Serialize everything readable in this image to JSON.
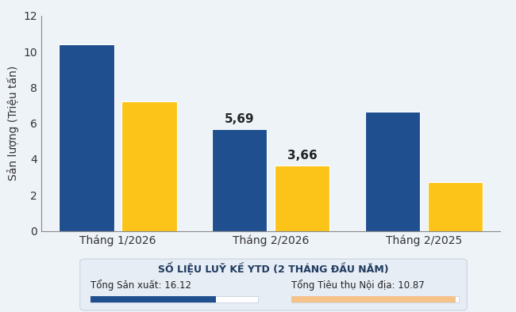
{
  "chart_data": {
    "type": "bar",
    "y_label": "Sản lượng (Triệu tấn)",
    "categories": [
      "Tháng 1/2026",
      "Tháng 2/2026",
      "Tháng 2/2025"
    ],
    "series": [
      {
        "color": "#1f4f8f",
        "values": [
          10.4,
          5.69,
          6.65
        ],
        "value_labels": [
          null,
          "5,69",
          null
        ]
      },
      {
        "color": "#fcc419",
        "values": [
          7.2,
          3.66,
          2.7
        ],
        "value_labels": [
          null,
          "3,66",
          null
        ]
      }
    ],
    "ylim": [
      0,
      12
    ],
    "yticks": [
      0,
      2,
      4,
      6,
      8,
      10,
      12
    ],
    "grid": false,
    "data_labels": true
  },
  "summary": {
    "title": "SỐ LIỆU LUỸ KẾ YTD (2 THÁNG ĐẦU NĂM)",
    "items": [
      {
        "text": "Tổng Sản xuất: 16.12",
        "color": "#1f4f8f"
      },
      {
        "text": "Tổng Tiêu thụ Nội địa: 10.87",
        "color": "#f5c28a"
      }
    ]
  }
}
